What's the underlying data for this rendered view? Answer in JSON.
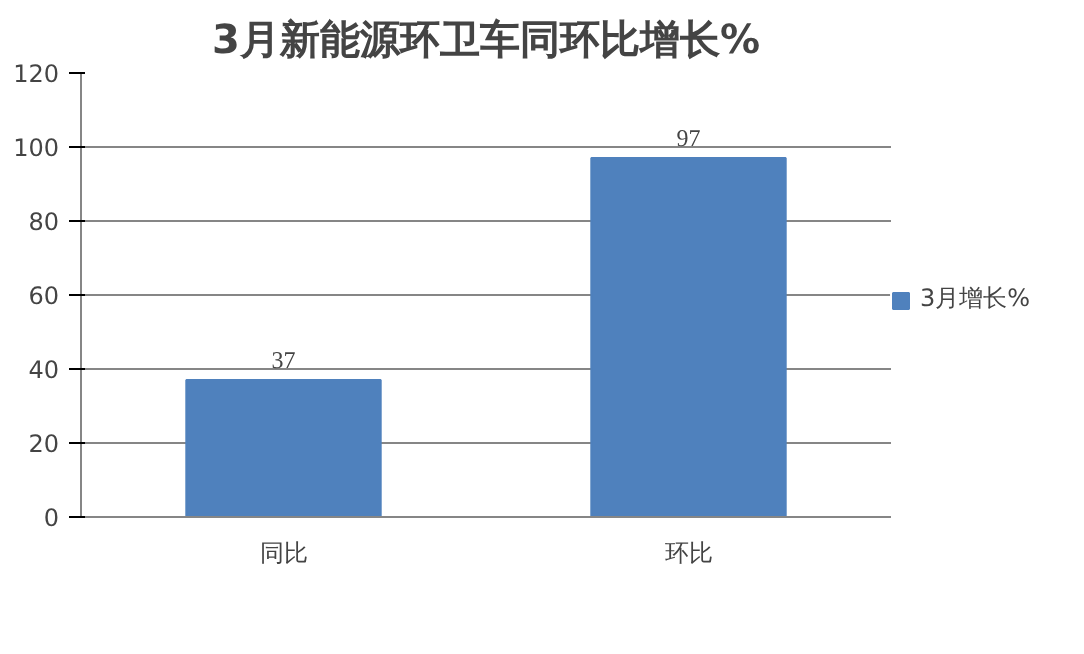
{
  "chart_data": {
    "type": "bar",
    "title": "3月新能源环卫车同环比增长%",
    "categories": [
      "同比",
      "环比"
    ],
    "series": [
      {
        "name": "3月增长%",
        "color": "#4f81bd",
        "values": [
          37,
          97
        ]
      }
    ],
    "ylim": [
      0,
      120
    ],
    "yticks": [
      0,
      20,
      40,
      60,
      80,
      100,
      120
    ],
    "grid": "y",
    "legend": "right",
    "data_labels": true
  }
}
